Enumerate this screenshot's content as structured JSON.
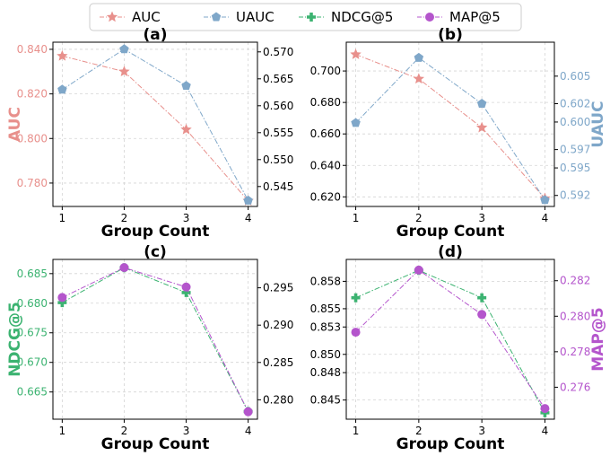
{
  "legend": {
    "items": [
      {
        "label": "AUC",
        "color": "#e8908c",
        "marker": "star"
      },
      {
        "label": "UAUC",
        "color": "#7fa7c9",
        "marker": "pentagon"
      },
      {
        "label": "NDCG@5",
        "color": "#3cb371",
        "marker": "plus"
      },
      {
        "label": "MAP@5",
        "color": "#b455cc",
        "marker": "circle"
      }
    ]
  },
  "chart_data": [
    {
      "id": "a",
      "type": "line",
      "title": "(a)",
      "xlabel": "Group Count",
      "x": [
        1,
        2,
        3,
        4
      ],
      "xticks": [
        "1",
        "2",
        "3",
        "4"
      ],
      "left": {
        "name": "AUC",
        "ylabel": "AUC",
        "color": "#e8908c",
        "marker": "star",
        "values": [
          0.837,
          0.83,
          0.804,
          0.772
        ],
        "ylim": [
          0.7695,
          0.8432
        ],
        "ticks": [
          0.78,
          0.8,
          0.82,
          0.84
        ],
        "tick_labels": [
          "0.780",
          "0.800",
          "0.820",
          "0.840"
        ]
      },
      "right": {
        "name": "UAUC",
        "ylabel": "",
        "color": "#7fa7c9",
        "marker": "pentagon",
        "values": [
          0.563,
          0.5705,
          0.5637,
          0.5424
        ],
        "ylim": [
          0.5413,
          0.5718
        ],
        "ticks": [
          0.545,
          0.55,
          0.555,
          0.56,
          0.565,
          0.57
        ],
        "tick_labels": [
          "0.545",
          "0.550",
          "0.555",
          "0.560",
          "0.565",
          "0.570"
        ],
        "label_color": "#000000"
      }
    },
    {
      "id": "b",
      "type": "line",
      "title": "(b)",
      "xlabel": "Group Count",
      "x": [
        1,
        2,
        3,
        4
      ],
      "xticks": [
        "1",
        "2",
        "3",
        "4"
      ],
      "left": {
        "name": "AUC",
        "ylabel": "",
        "color": "#e8908c",
        "marker": "star",
        "values": [
          0.7105,
          0.695,
          0.664,
          0.619
        ],
        "ylim": [
          0.6139,
          0.7183
        ],
        "ticks": [
          0.62,
          0.64,
          0.66,
          0.68,
          0.7
        ],
        "tick_labels": [
          "0.620",
          "0.640",
          "0.660",
          "0.680",
          "0.700"
        ],
        "label_color": "#000000"
      },
      "right": {
        "name": "UAUC",
        "ylabel": "UAUC",
        "color": "#7fa7c9",
        "marker": "pentagon",
        "values": [
          0.5999,
          0.607,
          0.602,
          0.5915
        ],
        "ylim": [
          0.5908,
          0.6087
        ],
        "ticks": [
          0.592,
          0.595,
          0.597,
          0.6,
          0.602,
          0.605
        ],
        "tick_labels": [
          "0.592",
          "0.595",
          "0.597",
          "0.600",
          "0.602",
          "0.605"
        ],
        "label_color": "#7fa7c9"
      }
    },
    {
      "id": "c",
      "type": "line",
      "title": "(c)",
      "xlabel": "Group Count",
      "x": [
        1,
        2,
        3,
        4
      ],
      "xticks": [
        "1",
        "2",
        "3",
        "4"
      ],
      "left": {
        "name": "NDCG@5",
        "ylabel": "NDCG@5",
        "color": "#3cb371",
        "marker": "plus",
        "values": [
          0.6801,
          0.686,
          0.6818,
          0.6617
        ],
        "ylim": [
          0.6604,
          0.6874
        ],
        "ticks": [
          0.665,
          0.67,
          0.675,
          0.68,
          0.685
        ],
        "tick_labels": [
          "0.665",
          "0.670",
          "0.675",
          "0.680",
          "0.685"
        ]
      },
      "right": {
        "name": "MAP@5",
        "ylabel": "",
        "color": "#b455cc",
        "marker": "circle",
        "values": [
          0.2937,
          0.2977,
          0.2951,
          0.2784
        ],
        "ylim": [
          0.2774,
          0.2988
        ],
        "ticks": [
          0.28,
          0.285,
          0.29,
          0.295
        ],
        "tick_labels": [
          "0.280",
          "0.285",
          "0.290",
          "0.295"
        ],
        "label_color": "#000000"
      }
    },
    {
      "id": "d",
      "type": "line",
      "title": "(d)",
      "xlabel": "Group Count",
      "x": [
        1,
        2,
        3,
        4
      ],
      "xticks": [
        "1",
        "2",
        "3",
        "4"
      ],
      "left": {
        "name": "NDCG@5",
        "ylabel": "",
        "color": "#3cb371",
        "marker": "plus",
        "values": [
          0.8562,
          0.8592,
          0.8562,
          0.8436
        ],
        "ylim": [
          0.8429,
          0.8604
        ],
        "ticks": [
          0.845,
          0.848,
          0.85,
          0.853,
          0.855,
          0.858
        ],
        "tick_labels": [
          "0.845",
          "0.848",
          "0.850",
          "0.853",
          "0.855",
          "0.858"
        ],
        "label_color": "#000000"
      },
      "right": {
        "name": "MAP@5",
        "ylabel": "MAP@5",
        "color": "#b455cc",
        "marker": "circle",
        "values": [
          0.2791,
          0.2826,
          0.2801,
          0.2748
        ],
        "ylim": [
          0.2742,
          0.2832
        ],
        "ticks": [
          0.276,
          0.278,
          0.28,
          0.282
        ],
        "tick_labels": [
          "0.276",
          "0.278",
          "0.280",
          "0.282"
        ],
        "label_color": "#b455cc"
      }
    }
  ]
}
